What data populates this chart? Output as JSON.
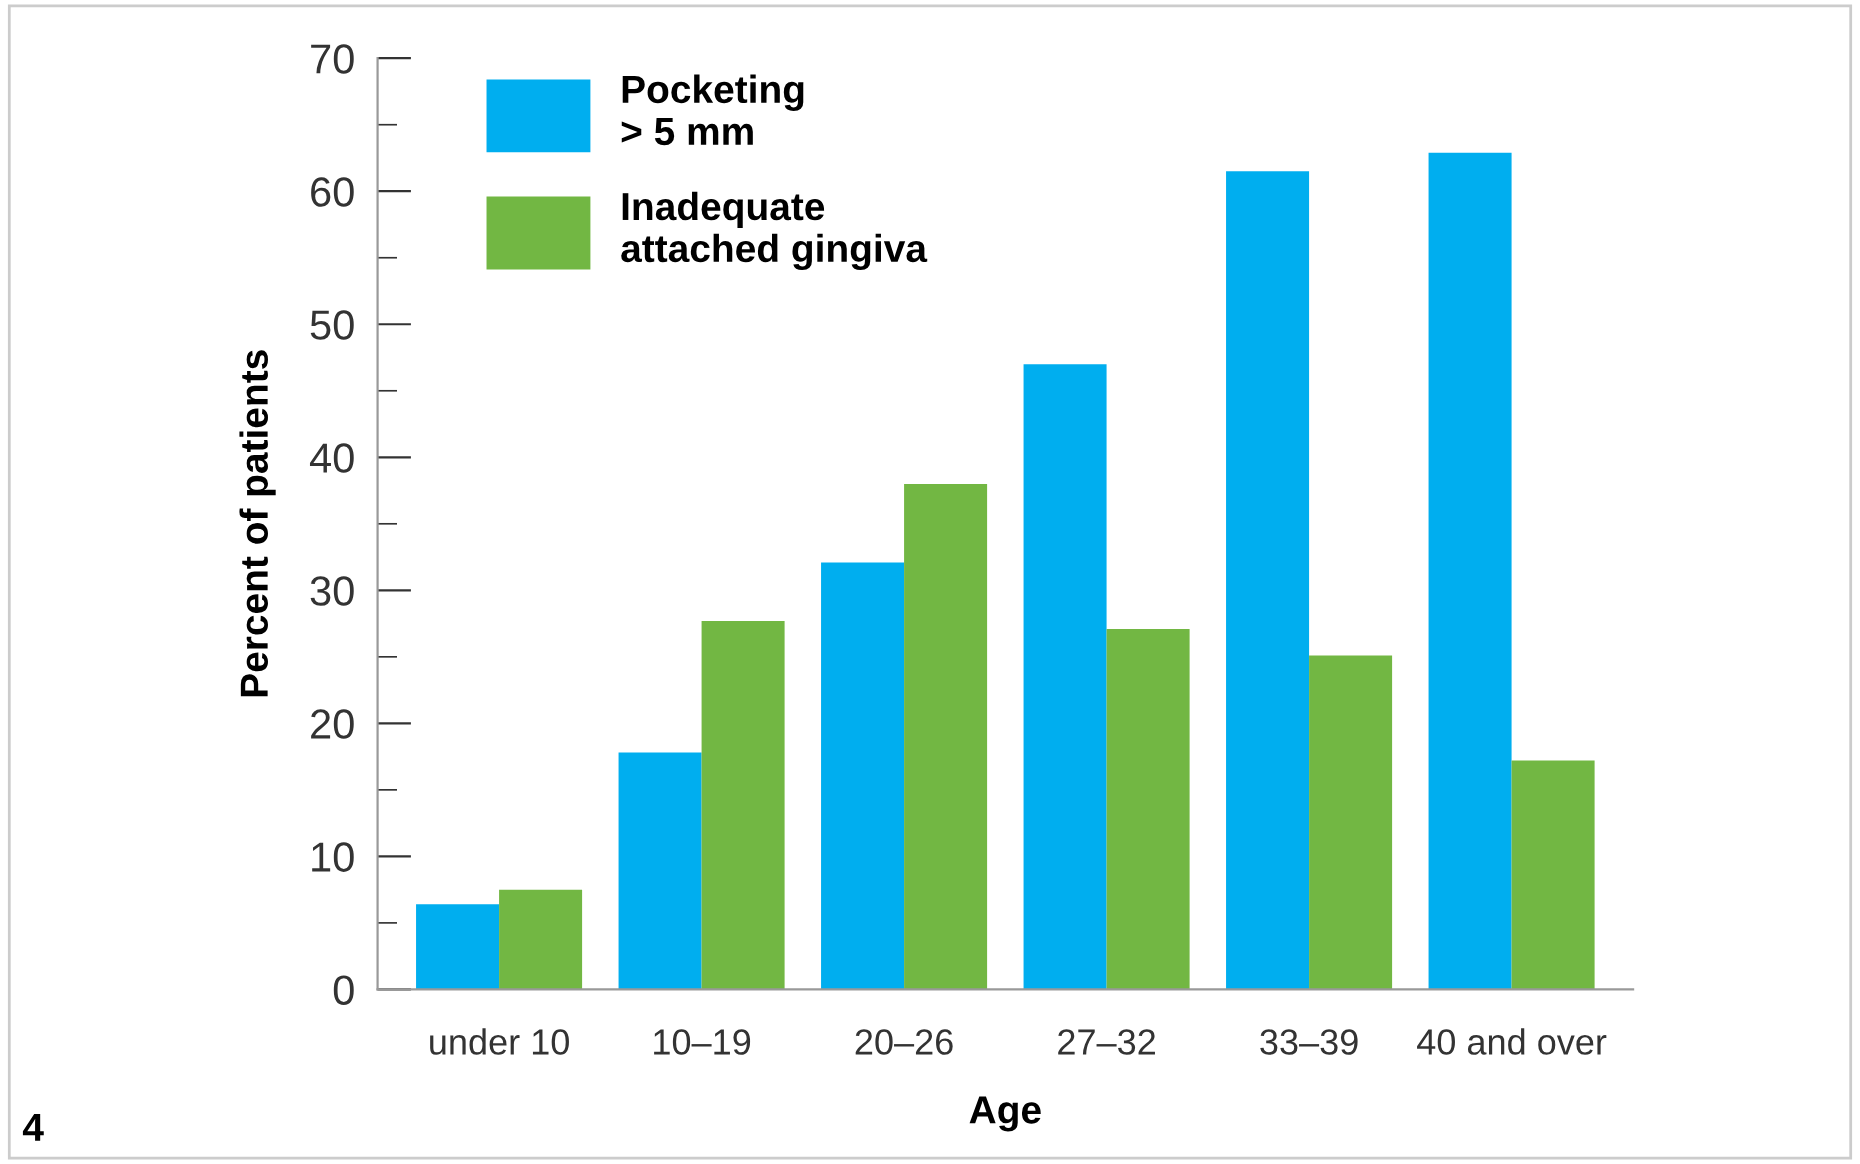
{
  "chart_data": {
    "type": "bar",
    "xlabel": "Age",
    "ylabel": "Percent of patients",
    "categories": [
      "under 10",
      "10–19",
      "20–26",
      "27–32",
      "33–39",
      "40 and over"
    ],
    "series": [
      {
        "name": "Pocketing\n> 5 mm",
        "color": "#00aeef",
        "values": [
          6.4,
          17.8,
          32.1,
          47.0,
          61.5,
          62.9
        ]
      },
      {
        "name": "Inadequate\nattached gingiva",
        "color": "#72b743",
        "values": [
          7.5,
          27.7,
          38.0,
          27.1,
          25.1,
          17.2
        ]
      }
    ],
    "ylim": [
      0,
      70
    ],
    "yticks": [
      0,
      {
        "value": 5,
        "label": null
      },
      10,
      {
        "value": 15,
        "label": null
      },
      20,
      {
        "value": 25,
        "label": null
      },
      30,
      {
        "value": 35,
        "label": null
      },
      40,
      {
        "value": 45,
        "label": null
      },
      50,
      {
        "value": 55,
        "label": null
      },
      60,
      {
        "value": 65,
        "label": null
      },
      70
    ],
    "grid": false,
    "legend": "top left",
    "annotations": [
      "4"
    ]
  }
}
